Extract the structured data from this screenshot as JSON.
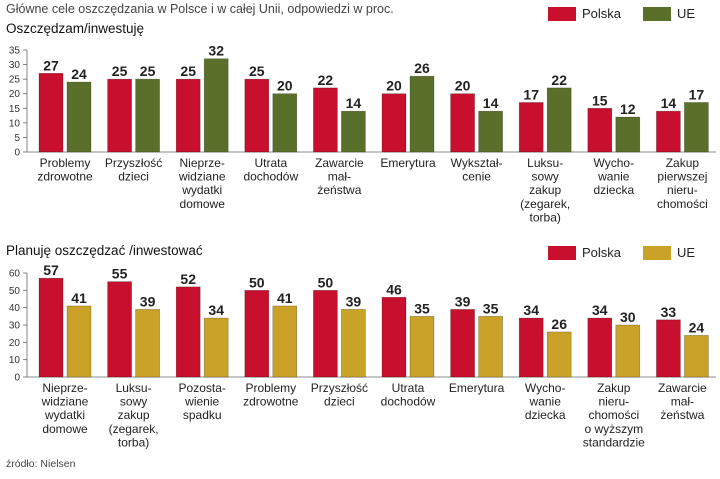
{
  "header": {
    "title": "Główne cele oszczędzania w Polsce i w całej Unii, odpowiedzi w proc."
  },
  "legend": {
    "polska": "Polska",
    "ue": "UE"
  },
  "footer": {
    "source": "źródło: Nielsen"
  },
  "colors": {
    "polska": "#c8102e",
    "ue_chart1": "#5a6f2a",
    "ue_chart2": "#c9a227"
  },
  "chart_data": [
    {
      "type": "bar",
      "title": "Oszczędzam/inwestuję",
      "ylim": [
        0,
        35
      ],
      "yticks": [
        0,
        5,
        10,
        15,
        20,
        25,
        30,
        35
      ],
      "categories": [
        [
          "Problemy",
          "zdrowotne"
        ],
        [
          "Przyszłość",
          "dzieci"
        ],
        [
          "Nieprze-",
          "widziane",
          "wydatki",
          "domowe"
        ],
        [
          "Utrata",
          "dochodów"
        ],
        [
          "Zawarcie",
          "mał-",
          "żeństwa"
        ],
        [
          "Emerytura"
        ],
        [
          "Wykształ-",
          "cenie"
        ],
        [
          "Luksu-",
          "sowy",
          "zakup",
          "(zegarek,",
          "torba)"
        ],
        [
          "Wycho-",
          "wanie",
          "dziecka"
        ],
        [
          "Zakup",
          "pierwszej",
          "nieru-",
          "chomości"
        ]
      ],
      "series": [
        {
          "name": "Polska",
          "values": [
            27,
            25,
            25,
            25,
            22,
            20,
            20,
            17,
            15,
            14
          ]
        },
        {
          "name": "UE",
          "values": [
            24,
            25,
            32,
            20,
            14,
            26,
            14,
            22,
            12,
            17
          ]
        }
      ]
    },
    {
      "type": "bar",
      "title": "Planuję oszczędzać /inwestować",
      "ylim": [
        0,
        60
      ],
      "yticks": [
        0,
        10,
        20,
        30,
        40,
        50,
        60
      ],
      "categories": [
        [
          "Nieprze-",
          "widziane",
          "wydatki",
          "domowe"
        ],
        [
          "Luksu-",
          "sowy",
          "zakup",
          "(zegarek,",
          "torba)"
        ],
        [
          "Pozosta-",
          "wienie",
          "spadku"
        ],
        [
          "Problemy",
          "zdrowotne"
        ],
        [
          "Przyszłość",
          "dzieci"
        ],
        [
          "Utrata",
          "dochodów"
        ],
        [
          "Emerytura"
        ],
        [
          "Wycho-",
          "wanie",
          "dziecka"
        ],
        [
          "Zakup",
          "nieru-",
          "chomości",
          "o wyższym",
          "standardzie"
        ],
        [
          "Zawarcie",
          "mał-",
          "żeństwa"
        ]
      ],
      "series": [
        {
          "name": "Polska",
          "values": [
            57,
            55,
            52,
            50,
            50,
            46,
            39,
            34,
            34,
            33
          ]
        },
        {
          "name": "UE",
          "values": [
            41,
            39,
            34,
            41,
            39,
            35,
            35,
            26,
            30,
            24
          ]
        }
      ]
    }
  ]
}
